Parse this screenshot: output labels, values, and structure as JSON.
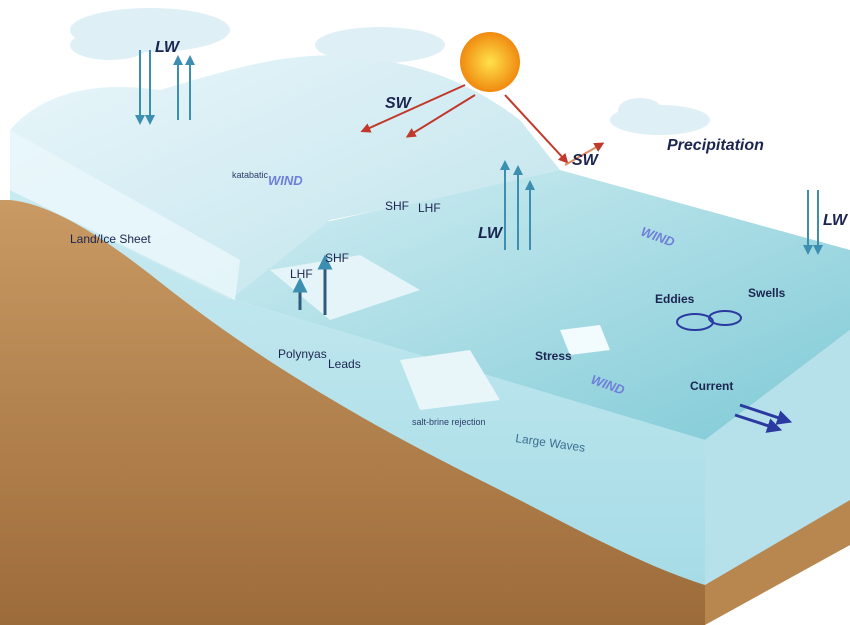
{
  "labels": [
    "LW",
    "SW",
    "SW",
    "Precipitation",
    "LW",
    "katabatic",
    "WIND",
    "Land/Ice Sheet",
    "SHF",
    "LHF",
    "LW",
    "LHF",
    "SHF",
    "Polynyas",
    "Leads",
    "WIND",
    "Eddies",
    "Swells",
    "Stress",
    "WIND",
    "Current",
    "salt-brine rejection",
    "Large Waves"
  ]
}
